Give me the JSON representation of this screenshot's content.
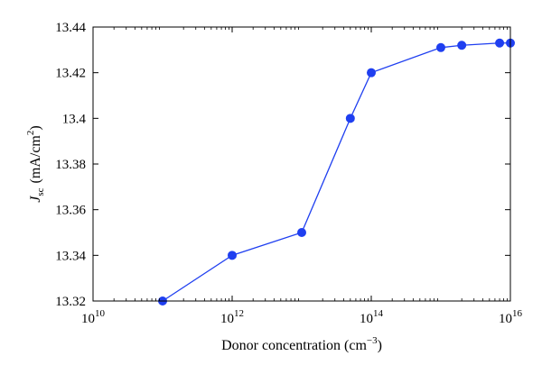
{
  "chart_data": {
    "type": "line",
    "xscale": "log",
    "xlabel": {
      "main": "Donor concentration (cm",
      "sup": "−3",
      "close": ")"
    },
    "ylabel": {
      "main": "J",
      "sub": "sc",
      "units": "(mA/cm",
      "sup": "2",
      "close": ")"
    },
    "xlim": [
      10000000000.0,
      1e+16
    ],
    "ylim": [
      13.32,
      13.44
    ],
    "x_ticks": [
      {
        "value": 10000000000.0,
        "base": "10",
        "exp": "10"
      },
      {
        "value": 1000000000000.0,
        "base": "10",
        "exp": "12"
      },
      {
        "value": 100000000000000.0,
        "base": "10",
        "exp": "14"
      },
      {
        "value": 1e+16,
        "base": "10",
        "exp": "16"
      }
    ],
    "y_ticks": [
      {
        "value": 13.32,
        "label": "13.32"
      },
      {
        "value": 13.34,
        "label": "13.34"
      },
      {
        "value": 13.36,
        "label": "13.36"
      },
      {
        "value": 13.38,
        "label": "13.38"
      },
      {
        "value": 13.4,
        "label": "13.4"
      },
      {
        "value": 13.42,
        "label": "13.42"
      },
      {
        "value": 13.44,
        "label": "13.44"
      }
    ],
    "series": [
      {
        "color": "#1f3ff0",
        "x": [
          100000000000.0,
          1000000000000.0,
          10000000000000.0,
          50000000000000.0,
          100000000000000.0,
          1000000000000000.0,
          2000000000000000.0,
          7000000000000000.0,
          1e+16
        ],
        "y": [
          13.32,
          13.34,
          13.35,
          13.4,
          13.42,
          13.431,
          13.432,
          13.433,
          13.433
        ]
      }
    ]
  }
}
